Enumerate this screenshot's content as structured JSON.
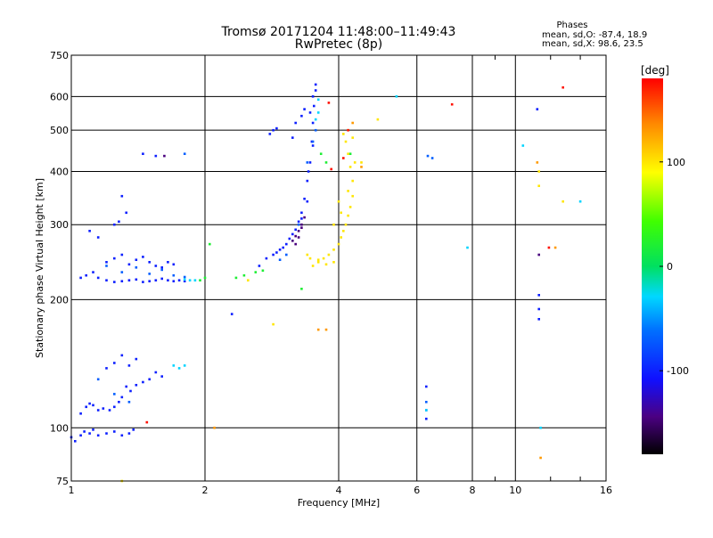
{
  "header": {
    "title": "Tromsø 20171204 11:48:00–11:49:43",
    "subtitle": "RwPretec (8p)",
    "phases_title": "Phases",
    "phases_o": "mean, sd,O: -87.4, 18.9",
    "phases_x": "mean, sd,X:  98.6, 23.5"
  },
  "chart_data": {
    "type": "scatter",
    "xlabel": "Frequency [MHz]",
    "ylabel": "Stationary phase Virtual Height [km]",
    "xscale": "log",
    "yscale": "log",
    "xlim": [
      1,
      16
    ],
    "ylim": [
      75,
      750
    ],
    "x_ticks": [
      1,
      2,
      4,
      6,
      8,
      10,
      16
    ],
    "x_tick_labels": [
      "1",
      "2",
      "4",
      "6",
      "8",
      "10",
      "16"
    ],
    "y_ticks": [
      75,
      100,
      200,
      300,
      400,
      500,
      600,
      750
    ],
    "y_tick_labels": [
      "75",
      "100",
      "200",
      "300",
      "400",
      "500",
      "600",
      "750"
    ],
    "grid": true,
    "colorbar": {
      "label": "[deg]",
      "range": [
        -180,
        180
      ],
      "ticks": [
        100,
        0,
        -100
      ],
      "tick_labels": [
        "100",
        "0",
        "-100"
      ]
    },
    "series": [
      {
        "color_deg": -100,
        "points": [
          [
            1.0,
            95
          ],
          [
            1.02,
            93
          ],
          [
            1.05,
            96
          ],
          [
            1.07,
            98
          ],
          [
            1.1,
            97
          ],
          [
            1.12,
            99
          ],
          [
            1.15,
            96
          ],
          [
            1.2,
            97
          ],
          [
            1.25,
            98
          ],
          [
            1.3,
            96
          ],
          [
            1.35,
            97
          ],
          [
            1.38,
            99
          ],
          [
            1.05,
            108
          ],
          [
            1.08,
            112
          ],
          [
            1.1,
            114
          ],
          [
            1.12,
            113
          ],
          [
            1.15,
            110
          ],
          [
            1.18,
            111
          ],
          [
            1.22,
            110
          ],
          [
            1.25,
            112
          ],
          [
            1.28,
            115
          ],
          [
            1.3,
            118
          ],
          [
            1.33,
            125
          ],
          [
            1.36,
            122
          ],
          [
            1.4,
            126
          ],
          [
            1.45,
            128
          ],
          [
            1.5,
            130
          ],
          [
            1.55,
            135
          ],
          [
            1.6,
            132
          ],
          [
            1.2,
            138
          ],
          [
            1.25,
            142
          ],
          [
            1.3,
            148
          ],
          [
            1.35,
            140
          ],
          [
            1.4,
            145
          ],
          [
            1.05,
            225
          ],
          [
            1.08,
            228
          ],
          [
            1.12,
            232
          ],
          [
            1.15,
            225
          ],
          [
            1.2,
            222
          ],
          [
            1.25,
            220
          ],
          [
            1.3,
            221
          ],
          [
            1.35,
            222
          ],
          [
            1.4,
            223
          ],
          [
            1.45,
            220
          ],
          [
            1.5,
            221
          ],
          [
            1.55,
            222
          ],
          [
            1.6,
            224
          ],
          [
            1.65,
            222
          ],
          [
            1.7,
            221
          ],
          [
            1.75,
            222
          ],
          [
            1.8,
            221
          ],
          [
            1.2,
            245
          ],
          [
            1.25,
            250
          ],
          [
            1.3,
            255
          ],
          [
            1.35,
            242
          ],
          [
            1.4,
            248
          ],
          [
            1.45,
            252
          ],
          [
            1.5,
            245
          ],
          [
            1.55,
            240
          ],
          [
            1.6,
            238
          ],
          [
            1.65,
            245
          ],
          [
            1.7,
            242
          ],
          [
            1.1,
            290
          ],
          [
            1.15,
            280
          ],
          [
            1.25,
            300
          ],
          [
            1.28,
            305
          ],
          [
            1.33,
            320
          ],
          [
            1.45,
            440
          ],
          [
            1.55,
            435
          ],
          [
            1.3,
            350
          ],
          [
            2.3,
            185
          ],
          [
            2.65,
            240
          ],
          [
            2.75,
            250
          ],
          [
            2.85,
            255
          ],
          [
            2.9,
            258
          ],
          [
            2.95,
            262
          ],
          [
            3.0,
            265
          ],
          [
            3.05,
            270
          ],
          [
            3.1,
            278
          ],
          [
            3.15,
            285
          ],
          [
            3.2,
            292
          ],
          [
            3.25,
            305
          ],
          [
            3.3,
            320
          ],
          [
            3.35,
            345
          ],
          [
            3.4,
            380
          ],
          [
            3.45,
            420
          ],
          [
            3.48,
            470
          ],
          [
            3.5,
            520
          ],
          [
            3.52,
            570
          ],
          [
            3.55,
            620
          ],
          [
            3.55,
            640
          ],
          [
            3.5,
            600
          ],
          [
            3.45,
            550
          ],
          [
            3.5,
            460
          ],
          [
            3.42,
            400
          ],
          [
            3.4,
            340
          ],
          [
            3.3,
            310
          ],
          [
            2.8,
            490
          ],
          [
            2.85,
            500
          ],
          [
            2.9,
            505
          ],
          [
            3.2,
            520
          ],
          [
            3.3,
            540
          ],
          [
            3.35,
            560
          ],
          [
            3.15,
            480
          ],
          [
            6.3,
            125
          ],
          [
            6.3,
            110
          ],
          [
            6.3,
            105
          ],
          [
            11.2,
            560
          ],
          [
            11.3,
            205
          ],
          [
            11.3,
            190
          ],
          [
            11.3,
            180
          ]
        ]
      },
      {
        "color_deg": -145,
        "points": [
          [
            3.15,
            275
          ],
          [
            3.2,
            282
          ],
          [
            3.25,
            290
          ],
          [
            3.3,
            300
          ],
          [
            3.35,
            312
          ],
          [
            3.2,
            270
          ],
          [
            3.25,
            280
          ],
          [
            3.3,
            295
          ],
          [
            11.3,
            255
          ],
          [
            1.62,
            435
          ]
        ]
      },
      {
        "color_deg": -70,
        "points": [
          [
            1.2,
            240
          ],
          [
            1.3,
            232
          ],
          [
            1.4,
            238
          ],
          [
            1.5,
            230
          ],
          [
            1.6,
            235
          ],
          [
            1.7,
            228
          ],
          [
            1.8,
            226
          ],
          [
            1.15,
            130
          ],
          [
            1.25,
            120
          ],
          [
            1.35,
            115
          ],
          [
            2.95,
            248
          ],
          [
            3.05,
            255
          ],
          [
            3.25,
            300
          ],
          [
            3.4,
            420
          ],
          [
            3.55,
            500
          ],
          [
            3.5,
            470
          ],
          [
            1.8,
            440
          ],
          [
            6.3,
            115
          ],
          [
            6.35,
            435
          ],
          [
            6.5,
            430
          ]
        ]
      },
      {
        "color_deg": -30,
        "points": [
          [
            1.7,
            140
          ],
          [
            1.75,
            138
          ],
          [
            1.8,
            140
          ],
          [
            1.8,
            223
          ],
          [
            1.85,
            222
          ],
          [
            1.9,
            222
          ],
          [
            3.55,
            530
          ],
          [
            3.6,
            550
          ],
          [
            3.6,
            590
          ],
          [
            5.4,
            600
          ],
          [
            6.3,
            110
          ],
          [
            10.4,
            460
          ],
          [
            7.8,
            265
          ],
          [
            14.0,
            340
          ],
          [
            11.4,
            100
          ]
        ]
      },
      {
        "color_deg": 20,
        "points": [
          [
            1.95,
            222
          ],
          [
            2.0,
            225
          ],
          [
            2.05,
            270
          ],
          [
            2.35,
            225
          ],
          [
            2.45,
            228
          ],
          [
            2.6,
            232
          ],
          [
            2.7,
            234
          ],
          [
            3.3,
            212
          ],
          [
            3.65,
            440
          ],
          [
            3.75,
            420
          ],
          [
            4.25,
            440
          ]
        ]
      },
      {
        "color_deg": 100,
        "points": [
          [
            3.5,
            240
          ],
          [
            3.6,
            245
          ],
          [
            3.7,
            250
          ],
          [
            3.8,
            255
          ],
          [
            3.9,
            262
          ],
          [
            4.0,
            270
          ],
          [
            4.05,
            280
          ],
          [
            4.1,
            290
          ],
          [
            4.15,
            300
          ],
          [
            4.2,
            315
          ],
          [
            4.25,
            330
          ],
          [
            4.3,
            350
          ],
          [
            4.3,
            380
          ],
          [
            4.25,
            410
          ],
          [
            4.2,
            440
          ],
          [
            4.15,
            470
          ],
          [
            4.1,
            490
          ],
          [
            3.9,
            245
          ],
          [
            3.75,
            242
          ],
          [
            3.6,
            248
          ],
          [
            3.45,
            250
          ],
          [
            3.4,
            255
          ],
          [
            4.05,
            320
          ],
          [
            4.2,
            360
          ],
          [
            4.35,
            420
          ],
          [
            4.3,
            480
          ],
          [
            3.9,
            300
          ],
          [
            4.0,
            340
          ],
          [
            2.5,
            222
          ],
          [
            2.85,
            175
          ],
          [
            11.3,
            370
          ],
          [
            11.3,
            400
          ],
          [
            12.8,
            340
          ],
          [
            1.3,
            75
          ],
          [
            4.5,
            420
          ],
          [
            4.9,
            530
          ]
        ]
      },
      {
        "color_deg": 130,
        "points": [
          [
            3.6,
            170
          ],
          [
            3.75,
            170
          ],
          [
            4.2,
            500
          ],
          [
            4.3,
            520
          ],
          [
            4.5,
            410
          ],
          [
            11.4,
            85
          ],
          [
            12.3,
            265
          ],
          [
            11.2,
            420
          ],
          [
            2.1,
            100
          ]
        ]
      },
      {
        "color_deg": 175,
        "points": [
          [
            1.48,
            103
          ],
          [
            3.8,
            580
          ],
          [
            4.1,
            430
          ],
          [
            7.2,
            575
          ],
          [
            12.8,
            630
          ],
          [
            11.9,
            265
          ],
          [
            4.2,
            500
          ],
          [
            3.85,
            405
          ]
        ]
      }
    ]
  }
}
